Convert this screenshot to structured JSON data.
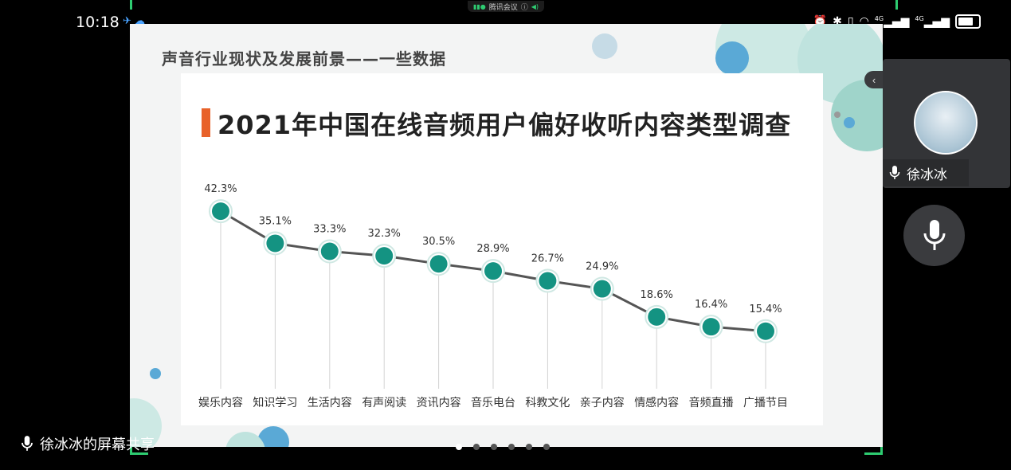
{
  "status_bar": {
    "time": "10:18",
    "network_labels": [
      "4G",
      "4G"
    ]
  },
  "meeting": {
    "app_name": "腾讯会议"
  },
  "slide": {
    "title": "声音行业现状及发展前景——一些数据"
  },
  "chart_data": {
    "type": "line",
    "title": "2021年中国在线音频用户偏好收听内容类型调查",
    "categories": [
      "娱乐内容",
      "知识学习",
      "生活内容",
      "有声阅读",
      "资讯内容",
      "音乐电台",
      "科教文化",
      "亲子内容",
      "情感内容",
      "音频直播",
      "广播节目"
    ],
    "values": [
      42.3,
      35.1,
      33.3,
      32.3,
      30.5,
      28.9,
      26.7,
      24.9,
      18.6,
      16.4,
      15.4
    ],
    "value_labels": [
      "42.3%",
      "35.1%",
      "33.3%",
      "32.3%",
      "30.5%",
      "28.9%",
      "26.7%",
      "24.9%",
      "18.6%",
      "16.4%",
      "15.4%"
    ],
    "unit": "%",
    "xlabel": "",
    "ylabel": "",
    "grid": false,
    "colors": {
      "line": "#555555",
      "marker": "#149382",
      "marker_ring": "#ffffff",
      "accent_bar": "#e8622a"
    }
  },
  "participant": {
    "name": "徐冰冰"
  },
  "screen_share": {
    "label": "徐冰冰的屏幕共享"
  },
  "pager": {
    "count": 6,
    "active": 0
  }
}
